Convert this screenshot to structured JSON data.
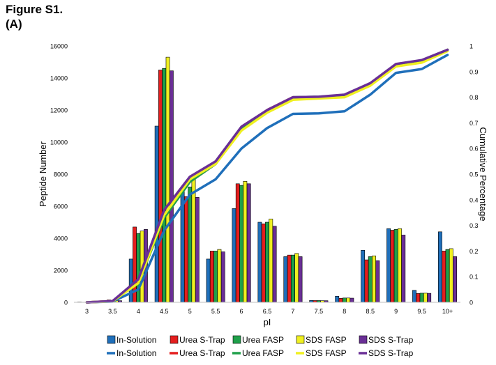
{
  "figure": {
    "title": "Figure S1.",
    "panel": "(A)"
  },
  "colors": {
    "In-Solution": "#1f6fba",
    "Urea S-Trap": "#e41e1e",
    "Urea FASP": "#1fa04a",
    "SDS FASP": "#f0f020",
    "SDS S-Trap": "#6a2f96"
  },
  "chart_data": {
    "type": "bar",
    "xlabel": "pI",
    "ylabel": "Peptide Number",
    "y2label": "Cumulative Percentage",
    "categories": [
      "3",
      "3.5",
      "4",
      "4.5",
      "5",
      "5.5",
      "6",
      "6.5",
      "7",
      "7.5",
      "8",
      "8.5",
      "9",
      "9.5",
      "10+"
    ],
    "ylim": [
      0,
      16000
    ],
    "yticks": [
      "0",
      "2000",
      "4000",
      "6000",
      "8000",
      "10000",
      "12000",
      "14000",
      "16000"
    ],
    "y2lim": [
      0,
      1
    ],
    "y2ticks": [
      "0",
      "0.1",
      "0.2",
      "0.3",
      "0.4",
      "0.5",
      "0.6",
      "0.7",
      "0.8",
      "0.9",
      "1"
    ],
    "legend_position": "bottom",
    "legend_bars": [
      "In-Solution",
      "Urea S-Trap",
      "Urea FASP",
      "SDS FASP",
      "SDS S-Trap"
    ],
    "legend_lines": [
      "In-Solution",
      "Urea S-Trap",
      "Urea FASP",
      "SDS FASP",
      "SDS S-Trap"
    ],
    "series": [
      {
        "name": "In-Solution",
        "values": [
          20,
          60,
          2700,
          11000,
          6900,
          2700,
          5850,
          5000,
          2850,
          120,
          380,
          3250,
          4600,
          750,
          4400
        ],
        "cumulative": [
          0.0,
          0.003,
          0.05,
          0.28,
          0.42,
          0.48,
          0.6,
          0.68,
          0.735,
          0.737,
          0.745,
          0.81,
          0.895,
          0.91,
          0.965
        ]
      },
      {
        "name": "Urea S-Trap",
        "values": [
          10,
          150,
          4700,
          14500,
          6600,
          3200,
          7400,
          4900,
          2950,
          110,
          250,
          2650,
          4500,
          550,
          3200
        ],
        "cumulative": [
          0.0,
          0.005,
          0.08,
          0.34,
          0.47,
          0.54,
          0.68,
          0.75,
          0.8,
          0.8,
          0.805,
          0.85,
          0.925,
          0.94,
          0.985
        ]
      },
      {
        "name": "Urea FASP",
        "values": [
          10,
          120,
          4300,
          14600,
          7200,
          3200,
          7300,
          5000,
          2950,
          110,
          270,
          2850,
          4550,
          570,
          3300
        ],
        "cumulative": [
          0.0,
          0.004,
          0.075,
          0.33,
          0.47,
          0.54,
          0.675,
          0.745,
          0.8,
          0.802,
          0.807,
          0.852,
          0.925,
          0.94,
          0.985
        ]
      },
      {
        "name": "SDS FASP",
        "values": [
          10,
          110,
          4450,
          15300,
          7700,
          3300,
          7550,
          5200,
          3050,
          100,
          270,
          2900,
          4600,
          570,
          3350
        ],
        "cumulative": [
          0.0,
          0.004,
          0.075,
          0.34,
          0.48,
          0.54,
          0.67,
          0.74,
          0.79,
          0.795,
          0.8,
          0.845,
          0.92,
          0.935,
          0.98
        ]
      },
      {
        "name": "SDS S-Trap",
        "values": [
          10,
          100,
          4550,
          14450,
          6550,
          3150,
          7400,
          4750,
          2850,
          100,
          260,
          2600,
          4200,
          560,
          2850
        ],
        "cumulative": [
          0.0,
          0.005,
          0.09,
          0.36,
          0.49,
          0.55,
          0.685,
          0.75,
          0.8,
          0.802,
          0.81,
          0.855,
          0.93,
          0.945,
          0.985
        ]
      }
    ]
  }
}
